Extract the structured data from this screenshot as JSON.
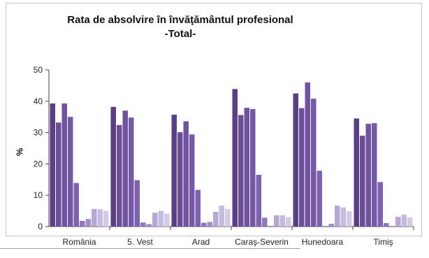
{
  "chart_data": {
    "type": "bar",
    "title": "Rata de absolvire în învăţământul profesional",
    "subtitle": "-Total-",
    "ylabel": "%",
    "xlabel": "",
    "ylim": [
      0,
      50
    ],
    "yticks": [
      0,
      10,
      20,
      30,
      40,
      50
    ],
    "categories": [
      "România",
      "5. Vest",
      "Arad",
      "Caraş-Severin",
      "Hunedoara",
      "Timiş"
    ],
    "series": [
      {
        "color": "#5b3f86",
        "values": [
          39.3,
          38.2,
          35.7,
          43.9,
          42.5,
          34.5
        ]
      },
      {
        "color": "#6a4c98",
        "values": [
          33.2,
          32.4,
          30.1,
          35.6,
          37.8,
          29.0
        ]
      },
      {
        "color": "#6f52a0",
        "values": [
          39.3,
          37.0,
          33.6,
          37.9,
          46.0,
          32.8
        ]
      },
      {
        "color": "#7558a8",
        "values": [
          35.0,
          34.8,
          29.4,
          37.5,
          40.8,
          33.0
        ]
      },
      {
        "color": "#7e62b0",
        "values": [
          13.9,
          14.8,
          11.7,
          16.5,
          17.8,
          14.2
        ]
      },
      {
        "color": "#8f76bb",
        "values": [
          1.8,
          1.3,
          1.2,
          2.8,
          0.0,
          1.1
        ]
      },
      {
        "color": "#a18fc8",
        "values": [
          2.4,
          0.8,
          1.5,
          0.0,
          0.9,
          0.0
        ]
      },
      {
        "color": "#b6a7d4",
        "values": [
          5.6,
          4.4,
          4.7,
          3.6,
          6.7,
          3.1
        ]
      },
      {
        "color": "#c6bade",
        "values": [
          5.5,
          5.0,
          6.7,
          3.6,
          6.1,
          3.8
        ]
      },
      {
        "color": "#d3cbe6",
        "values": [
          5.0,
          4.1,
          5.6,
          3.0,
          4.9,
          2.9
        ]
      }
    ]
  }
}
